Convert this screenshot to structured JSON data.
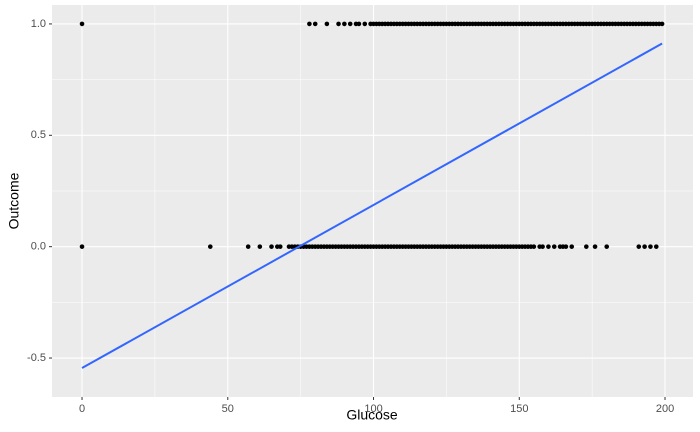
{
  "chart_data": {
    "type": "scatter",
    "x_label": "Glucose",
    "y_label": "Outcome",
    "xlim": [
      -10.3,
      209.6
    ],
    "ylim": [
      -0.675,
      1.085
    ],
    "xticks": [
      0,
      50,
      100,
      150,
      200
    ],
    "yticks": [
      -0.5,
      {
        "value": 0,
        "label": "0.0"
      },
      0.5,
      {
        "value": 1,
        "label": "1.0"
      }
    ],
    "x_minor_ticks": [
      25,
      75,
      125,
      175
    ],
    "y_minor_ticks": [
      -0.25,
      0.25,
      0.75
    ],
    "grid": true,
    "background": "#EBEBEB",
    "series": [
      {
        "color": "#000000",
        "x": [
          0,
          78,
          80,
          84,
          88,
          90,
          92,
          94,
          95,
          97,
          99,
          100,
          101,
          102,
          103,
          104,
          105,
          106,
          107,
          108,
          109,
          110,
          111,
          112,
          113,
          114,
          115,
          116,
          117,
          118,
          119,
          120,
          121,
          122,
          123,
          124,
          125,
          126,
          127,
          128,
          129,
          130,
          131,
          132,
          133,
          134,
          135,
          136,
          137,
          138,
          139,
          140,
          141,
          142,
          143,
          144,
          145,
          146,
          147,
          148,
          149,
          150,
          151,
          152,
          153,
          154,
          155,
          156,
          157,
          158,
          159,
          160,
          161,
          162,
          163,
          164,
          165,
          166,
          167,
          168,
          169,
          170,
          171,
          172,
          173,
          174,
          175,
          176,
          177,
          178,
          179,
          180,
          181,
          182,
          183,
          184,
          185,
          186,
          187,
          188,
          189,
          190,
          191,
          192,
          193,
          194,
          195,
          196,
          197,
          198,
          199
        ],
        "values": [
          1,
          1,
          1,
          1,
          1,
          1,
          1,
          1,
          1,
          1,
          1,
          1,
          1,
          1,
          1,
          1,
          1,
          1,
          1,
          1,
          1,
          1,
          1,
          1,
          1,
          1,
          1,
          1,
          1,
          1,
          1,
          1,
          1,
          1,
          1,
          1,
          1,
          1,
          1,
          1,
          1,
          1,
          1,
          1,
          1,
          1,
          1,
          1,
          1,
          1,
          1,
          1,
          1,
          1,
          1,
          1,
          1,
          1,
          1,
          1,
          1,
          1,
          1,
          1,
          1,
          1,
          1,
          1,
          1,
          1,
          1,
          1,
          1,
          1,
          1,
          1,
          1,
          1,
          1,
          1,
          1,
          1,
          1,
          1,
          1,
          1,
          1,
          1,
          1,
          1,
          1,
          1,
          1,
          1,
          1,
          1,
          1,
          1,
          1,
          1,
          1,
          1,
          1,
          1,
          1,
          1,
          1,
          1,
          1,
          1,
          1
        ]
      },
      {
        "color": "#000000",
        "x": [
          0,
          44,
          57,
          61,
          65,
          67,
          68,
          71,
          72,
          73,
          74,
          75,
          76,
          77,
          78,
          79,
          80,
          81,
          82,
          83,
          84,
          85,
          86,
          87,
          88,
          89,
          90,
          91,
          92,
          93,
          94,
          95,
          96,
          97,
          98,
          99,
          100,
          101,
          102,
          103,
          104,
          105,
          106,
          107,
          108,
          109,
          110,
          111,
          112,
          113,
          114,
          115,
          116,
          117,
          118,
          119,
          120,
          121,
          122,
          123,
          124,
          125,
          126,
          127,
          128,
          129,
          130,
          131,
          132,
          133,
          134,
          135,
          136,
          137,
          138,
          139,
          140,
          141,
          142,
          143,
          144,
          145,
          146,
          147,
          148,
          149,
          150,
          151,
          152,
          153,
          154,
          155,
          157,
          158,
          160,
          162,
          164,
          165,
          166,
          168,
          173,
          176,
          180,
          191,
          193,
          195,
          197
        ],
        "values": [
          0,
          0,
          0,
          0,
          0,
          0,
          0,
          0,
          0,
          0,
          0,
          0,
          0,
          0,
          0,
          0,
          0,
          0,
          0,
          0,
          0,
          0,
          0,
          0,
          0,
          0,
          0,
          0,
          0,
          0,
          0,
          0,
          0,
          0,
          0,
          0,
          0,
          0,
          0,
          0,
          0,
          0,
          0,
          0,
          0,
          0,
          0,
          0,
          0,
          0,
          0,
          0,
          0,
          0,
          0,
          0,
          0,
          0,
          0,
          0,
          0,
          0,
          0,
          0,
          0,
          0,
          0,
          0,
          0,
          0,
          0,
          0,
          0,
          0,
          0,
          0,
          0,
          0,
          0,
          0,
          0,
          0,
          0,
          0,
          0,
          0,
          0,
          0,
          0,
          0,
          0,
          0,
          0,
          0,
          0,
          0,
          0,
          0,
          0,
          0,
          0,
          0,
          0,
          0,
          0,
          0,
          0
        ]
      }
    ],
    "fit": {
      "color": "#3366FF",
      "x": [
        0,
        199
      ],
      "values": [
        -0.545,
        0.912
      ]
    }
  }
}
